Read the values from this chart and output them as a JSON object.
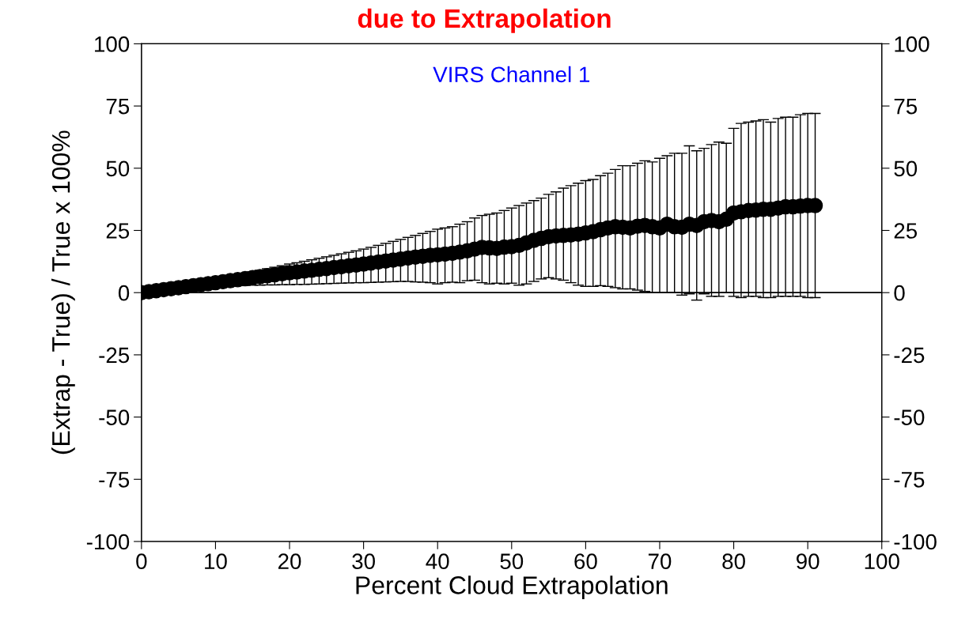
{
  "chart_data": {
    "type": "scatter",
    "title": "due to Extrapolation",
    "annotations": [
      "VIRS Channel 1"
    ],
    "xlabel": "Percent Cloud Extrapolation",
    "ylabel": "(Extrap - True) / True x 100%",
    "x": [
      0,
      1,
      2,
      3,
      4,
      5,
      6,
      7,
      8,
      9,
      10,
      11,
      12,
      13,
      14,
      15,
      16,
      17,
      18,
      19,
      20,
      21,
      22,
      23,
      24,
      25,
      26,
      27,
      28,
      29,
      30,
      31,
      32,
      33,
      34,
      35,
      36,
      37,
      38,
      39,
      40,
      41,
      42,
      43,
      44,
      45,
      46,
      47,
      48,
      49,
      50,
      51,
      52,
      53,
      54,
      55,
      56,
      57,
      58,
      59,
      60,
      61,
      62,
      63,
      64,
      65,
      66,
      67,
      68,
      69,
      70,
      71,
      72,
      73,
      74,
      75,
      76,
      77,
      78,
      79,
      80,
      81,
      82,
      83,
      84,
      85,
      86,
      87,
      88,
      89,
      90,
      91
    ],
    "series": [
      {
        "color": "#000000",
        "values": [
          0,
          0.4,
          0.8,
          1.2,
          1.6,
          2,
          2.4,
          2.8,
          3.2,
          3.6,
          4,
          4.4,
          4.8,
          5.2,
          5.6,
          6,
          6.4,
          6.8,
          7.2,
          7.6,
          8,
          8.3,
          8.7,
          9,
          9.4,
          9.7,
          10.1,
          10.4,
          10.8,
          11.1,
          11.5,
          11.9,
          12.3,
          12.7,
          13.1,
          13.5,
          13.9,
          14.3,
          14.6,
          15,
          15.2,
          15.5,
          15.8,
          16.3,
          16.8,
          17.5,
          18.2,
          18,
          17.8,
          18.3,
          18.5,
          19,
          20,
          21,
          21.8,
          22.5,
          22.8,
          23,
          23.2,
          23.5,
          24,
          24.5,
          25.3,
          26,
          26.5,
          26.3,
          26,
          26.7,
          27,
          26.5,
          26,
          27.5,
          26.5,
          26.3,
          27.5,
          27,
          28.5,
          29,
          28.5,
          29.5,
          32,
          32.5,
          33,
          33.2,
          33.5,
          33.5,
          34,
          34.5,
          34.5,
          34.8,
          35,
          35
        ],
        "errors": [
          null,
          null,
          null,
          null,
          null,
          null,
          null,
          null,
          null,
          null,
          null,
          null,
          null,
          [
            2.8,
            7.2
          ],
          [
            2.9,
            7.8
          ],
          [
            3,
            8.4
          ],
          [
            3,
            9
          ],
          [
            3.1,
            9.6
          ],
          [
            3.1,
            10.2
          ],
          [
            3.2,
            10.8
          ],
          [
            3.2,
            11.5
          ],
          [
            3.3,
            12
          ],
          [
            3.3,
            12.6
          ],
          [
            3.4,
            13.2
          ],
          [
            3.5,
            13.8
          ],
          [
            3.6,
            14.4
          ],
          [
            3.7,
            15
          ],
          [
            3.8,
            15.6
          ],
          [
            3.9,
            16.2
          ],
          [
            4,
            16.8
          ],
          [
            4,
            17.5
          ],
          [
            4.1,
            18.2
          ],
          [
            4.2,
            19
          ],
          [
            4.3,
            19.8
          ],
          [
            4.4,
            20.6
          ],
          [
            4.5,
            21.4
          ],
          [
            4.5,
            22.2
          ],
          [
            4.3,
            23
          ],
          [
            4.2,
            23.8
          ],
          [
            4,
            24.6
          ],
          [
            3.5,
            25.5
          ],
          [
            4,
            26
          ],
          [
            4.2,
            26.5
          ],
          [
            4,
            27.5
          ],
          [
            4.8,
            28.5
          ],
          [
            5,
            30
          ],
          [
            4,
            31
          ],
          [
            3.5,
            31.5
          ],
          [
            3.8,
            32
          ],
          [
            3.5,
            33
          ],
          [
            3.8,
            34
          ],
          [
            3,
            35
          ],
          [
            3.5,
            36
          ],
          [
            4.5,
            37
          ],
          [
            5.5,
            38
          ],
          [
            6,
            39.5
          ],
          [
            5.5,
            40.5
          ],
          [
            5,
            42
          ],
          [
            4,
            43
          ],
          [
            3,
            44
          ],
          [
            2.5,
            45
          ],
          [
            2.5,
            45.5
          ],
          [
            2.8,
            47
          ],
          [
            2.5,
            48
          ],
          [
            2,
            49.5
          ],
          [
            1.5,
            51
          ],
          [
            1.5,
            51
          ],
          [
            1,
            52
          ],
          [
            0.5,
            53
          ],
          [
            0,
            52.5
          ],
          [
            0,
            54
          ],
          [
            0,
            55
          ],
          [
            0,
            56
          ],
          [
            -1,
            56
          ],
          [
            -0.5,
            59
          ],
          [
            -3,
            57
          ],
          [
            -0.5,
            58
          ],
          [
            -1.5,
            59.5
          ],
          [
            -1.5,
            60.5
          ],
          [
            0,
            60
          ],
          [
            -1.5,
            66
          ],
          [
            -2,
            68
          ],
          [
            -1.5,
            68.5
          ],
          [
            -1.5,
            69
          ],
          [
            -2,
            69.5
          ],
          [
            -2,
            68.5
          ],
          [
            -1.5,
            70
          ],
          [
            -1.5,
            70.5
          ],
          [
            -1.5,
            70.5
          ],
          [
            -1.5,
            71.5
          ],
          [
            -2,
            72
          ],
          [
            -2,
            72
          ]
        ]
      }
    ],
    "xlim": [
      0,
      100
    ],
    "xticks": [
      0,
      10,
      20,
      30,
      40,
      50,
      60,
      70,
      80,
      90,
      100
    ],
    "ylim": [
      -100,
      100
    ],
    "yticks": [
      -100,
      -75,
      -50,
      -25,
      0,
      25,
      50,
      75,
      100
    ],
    "y2lim": [
      -100,
      100
    ],
    "y2ticks": [
      -100,
      -75,
      -50,
      -25,
      0,
      25,
      50,
      75,
      100
    ],
    "ref_lines": [
      {
        "axis": "y",
        "value": 0,
        "color": "#000000"
      }
    ],
    "marker": "circle",
    "grid": false
  }
}
